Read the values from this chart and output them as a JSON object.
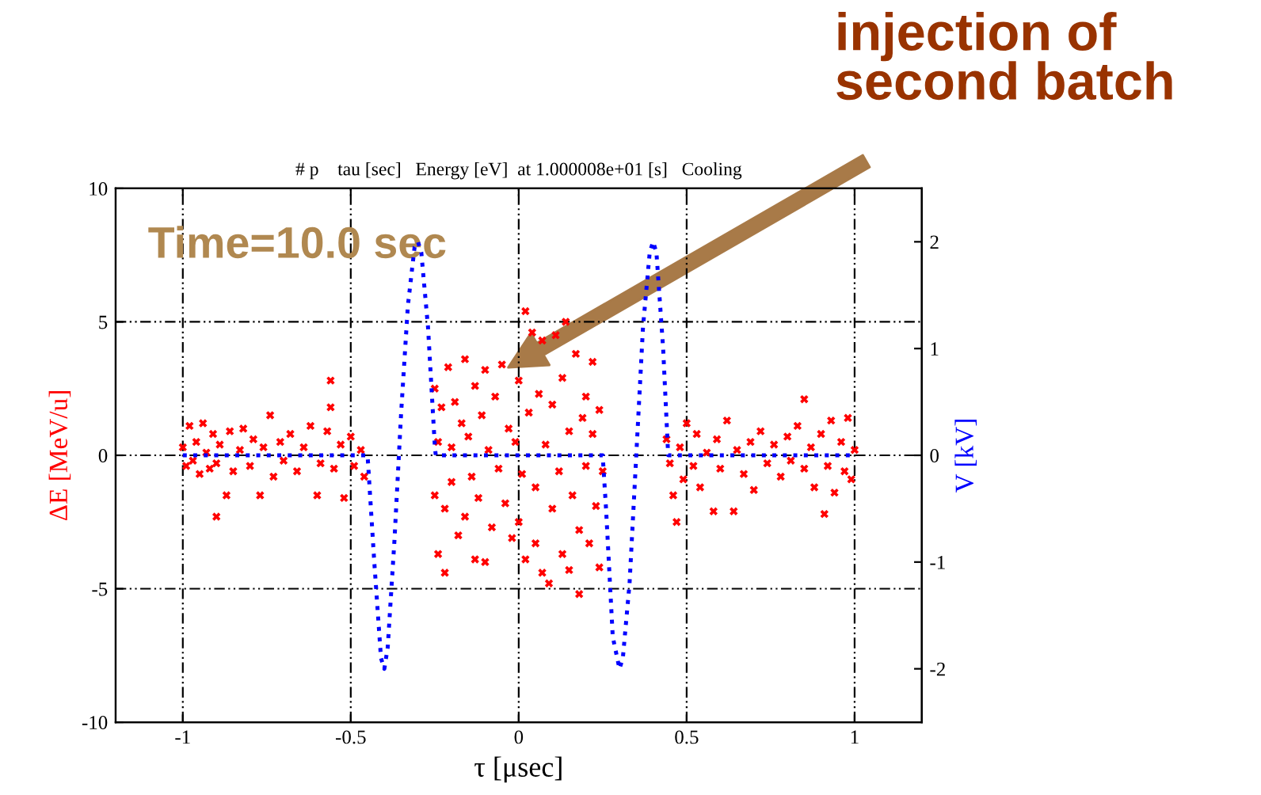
{
  "chart_data": {
    "type": "scatter",
    "title": "# p    tau [sec]   Energy [eV]  at 1.000008e+01 [s]   Cooling",
    "xlabel": "τ [μsec]",
    "ylabel": "ΔE [MeV/u]",
    "y2label": "V [kV]",
    "xlim": [
      -1.2,
      1.2
    ],
    "xticks": [
      -1,
      -0.5,
      0,
      0.5,
      1
    ],
    "ylim": [
      -10,
      10
    ],
    "yticks": [
      -10,
      -5,
      0,
      5,
      10
    ],
    "y2lim": [
      -2.5,
      2.5
    ],
    "y2ticks": [
      -2,
      -1,
      0,
      1,
      2
    ],
    "grid": true,
    "legend": false,
    "annotations": [
      "Time=10.0 sec",
      "injection of second batch"
    ],
    "series": [
      {
        "color": "#ff0000",
        "marker": "cross",
        "x": [
          -1.0,
          -0.99,
          -0.98,
          -0.97,
          -0.96,
          -0.95,
          -0.94,
          -0.93,
          -0.92,
          -0.91,
          -0.9,
          -0.9,
          -0.89,
          -0.87,
          -0.86,
          -0.85,
          -0.83,
          -0.82,
          -0.8,
          -0.79,
          -0.77,
          -0.76,
          -0.74,
          -0.73,
          -0.71,
          -0.7,
          -0.68,
          -0.66,
          -0.64,
          -0.62,
          -0.6,
          -0.59,
          -0.57,
          -0.56,
          -0.56,
          -0.55,
          -0.53,
          -0.52,
          -0.5,
          -0.49,
          -0.47,
          -0.46,
          -0.25,
          -0.25,
          -0.24,
          -0.24,
          -0.23,
          -0.22,
          -0.22,
          -0.21,
          -0.2,
          -0.2,
          -0.19,
          -0.18,
          -0.17,
          -0.16,
          -0.16,
          -0.15,
          -0.14,
          -0.13,
          -0.13,
          -0.12,
          -0.11,
          -0.1,
          -0.1,
          -0.09,
          -0.08,
          -0.07,
          -0.06,
          -0.05,
          -0.04,
          -0.03,
          -0.02,
          -0.01,
          0.0,
          0.0,
          0.01,
          0.02,
          0.02,
          0.03,
          0.04,
          0.05,
          0.05,
          0.06,
          0.07,
          0.07,
          0.08,
          0.09,
          0.1,
          0.1,
          0.11,
          0.12,
          0.13,
          0.13,
          0.14,
          0.15,
          0.15,
          0.16,
          0.17,
          0.18,
          0.18,
          0.19,
          0.2,
          0.2,
          0.21,
          0.22,
          0.22,
          0.23,
          0.24,
          0.24,
          0.25,
          0.44,
          0.45,
          0.46,
          0.47,
          0.48,
          0.49,
          0.5,
          0.52,
          0.53,
          0.54,
          0.56,
          0.58,
          0.59,
          0.6,
          0.62,
          0.64,
          0.65,
          0.67,
          0.69,
          0.7,
          0.72,
          0.74,
          0.76,
          0.78,
          0.8,
          0.81,
          0.83,
          0.85,
          0.85,
          0.87,
          0.88,
          0.9,
          0.91,
          0.92,
          0.93,
          0.94,
          0.96,
          0.97,
          0.98,
          0.99,
          1.0
        ],
        "values": [
          0.3,
          -0.4,
          1.1,
          -0.2,
          0.5,
          -0.7,
          1.2,
          0.1,
          -0.5,
          0.8,
          -0.3,
          -2.3,
          0.4,
          -1.5,
          0.9,
          -0.6,
          0.2,
          1.0,
          -0.4,
          0.6,
          -1.5,
          0.3,
          1.5,
          -0.8,
          0.5,
          -0.2,
          0.8,
          -0.6,
          0.3,
          1.1,
          -1.5,
          -0.3,
          0.9,
          2.8,
          1.8,
          -0.5,
          0.4,
          -1.6,
          0.7,
          -0.4,
          0.2,
          -0.8,
          2.5,
          -1.5,
          0.5,
          -3.7,
          1.8,
          -2.0,
          -4.4,
          3.3,
          0.3,
          -1.0,
          2.0,
          -3.0,
          1.2,
          3.6,
          -2.3,
          0.7,
          -0.8,
          2.6,
          -3.9,
          -1.6,
          1.5,
          3.2,
          -4.0,
          0.2,
          -2.7,
          2.2,
          -0.5,
          3.4,
          -1.8,
          1.0,
          -3.1,
          0.5,
          -2.5,
          2.8,
          -0.7,
          5.4,
          -3.9,
          1.6,
          4.6,
          -1.2,
          -3.3,
          2.3,
          4.3,
          -4.4,
          0.4,
          -4.8,
          1.9,
          -2.0,
          4.5,
          -0.6,
          2.9,
          -3.7,
          5.0,
          0.9,
          -4.3,
          -1.5,
          3.8,
          -2.8,
          -5.2,
          1.4,
          -0.4,
          2.2,
          -3.3,
          3.5,
          0.8,
          -1.9,
          -4.2,
          1.7,
          -0.6,
          0.6,
          -0.3,
          -1.5,
          -2.5,
          0.3,
          -0.9,
          1.2,
          -0.4,
          0.8,
          -1.2,
          0.1,
          -2.1,
          0.6,
          -0.5,
          1.3,
          -2.1,
          0.2,
          -0.7,
          0.5,
          -1.3,
          0.9,
          -0.3,
          0.4,
          -0.8,
          0.7,
          -0.2,
          1.1,
          2.1,
          -0.5,
          0.3,
          -1.2,
          0.8,
          -2.2,
          -0.4,
          1.3,
          -1.4,
          0.5,
          -0.6,
          1.4,
          -0.9,
          0.2
        ]
      },
      {
        "type": "line",
        "axis": "y2",
        "color": "#0000ff",
        "line_style": "dotted",
        "x": [
          -1.0,
          -0.45,
          -0.43,
          -0.41,
          -0.4,
          -0.39,
          -0.37,
          -0.35,
          -0.33,
          -0.31,
          -0.3,
          -0.29,
          -0.27,
          -0.25,
          -0.247,
          0.25,
          0.26,
          0.28,
          0.3,
          0.31,
          0.33,
          0.35,
          0.37,
          0.39,
          0.4,
          0.41,
          0.43,
          0.445,
          1.0
        ],
        "values": [
          0,
          0,
          -1.0,
          -1.9,
          -2.0,
          -1.8,
          -0.8,
          0.4,
          1.4,
          1.95,
          2.0,
          1.9,
          1.2,
          0.1,
          0,
          0,
          -0.5,
          -1.7,
          -2.0,
          -1.9,
          -1.2,
          0.0,
          1.2,
          1.9,
          2.0,
          1.9,
          1.0,
          0,
          0
        ]
      }
    ]
  }
}
